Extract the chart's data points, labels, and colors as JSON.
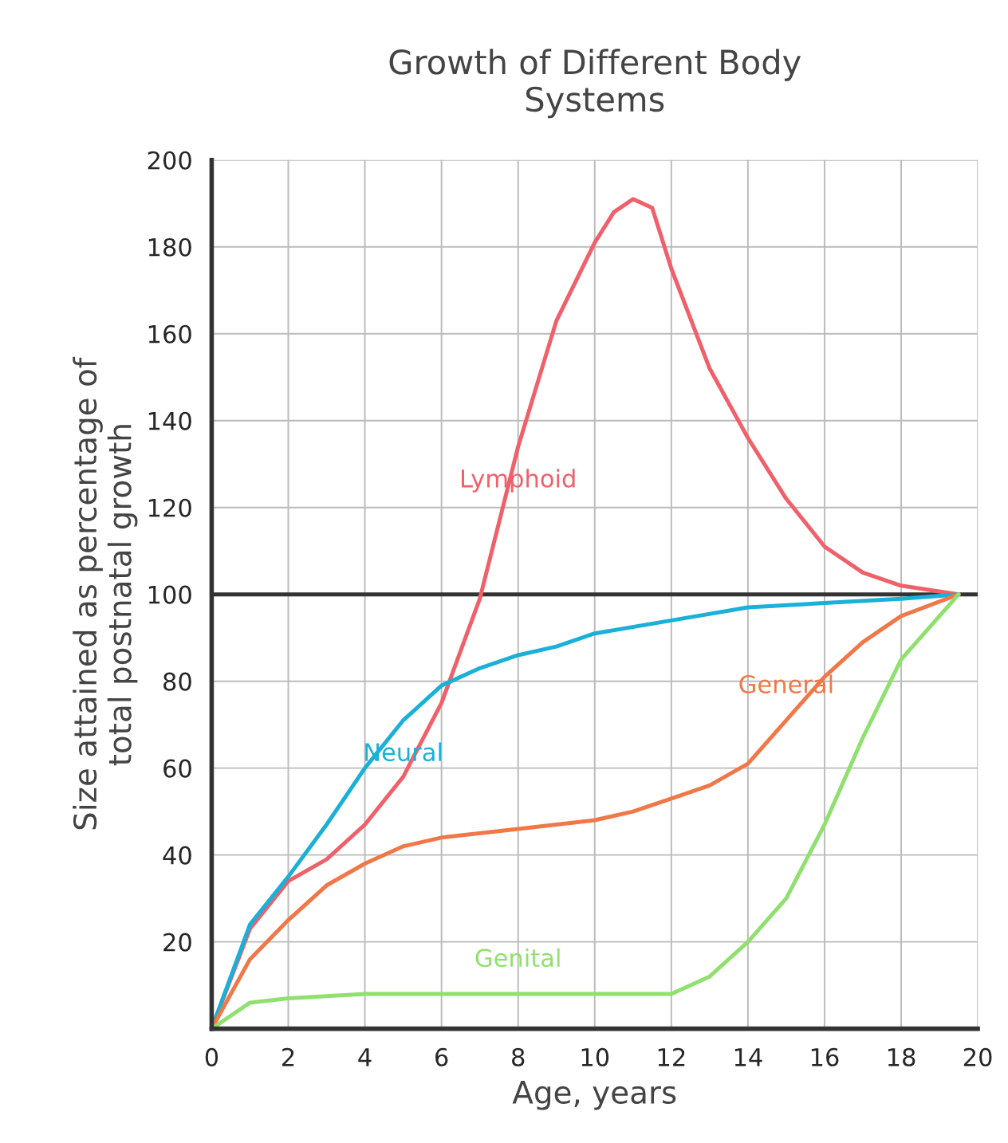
{
  "chart_data": {
    "type": "line",
    "title": "Growth of Different Body\nSystems",
    "xlabel": "Age, years",
    "ylabel": "Size attained as percentage of\ntotal postnatal growth",
    "xlim": [
      0,
      20
    ],
    "xticks": [
      0,
      2,
      4,
      6,
      8,
      10,
      12,
      14,
      16,
      18,
      20
    ],
    "ylim": [
      0,
      200
    ],
    "yticks": [
      20,
      40,
      60,
      80,
      100,
      120,
      140,
      160,
      180,
      200
    ],
    "grid": true,
    "legend": false,
    "marker": "none",
    "line_style": "solid",
    "ref_lines": [
      {
        "axis": "y",
        "value": 100,
        "label": null,
        "color": "#333333"
      }
    ],
    "series": [
      {
        "name": "Lymphoid",
        "color": "#f0606a",
        "x": [
          0,
          1,
          2,
          3,
          4,
          5,
          6,
          7,
          8,
          9,
          10,
          10.5,
          11,
          11.5,
          12,
          13,
          14,
          15,
          16,
          17,
          18,
          19.5
        ],
        "values": [
          0,
          23,
          34,
          39,
          47,
          58,
          75,
          99,
          134,
          163,
          181,
          188,
          191,
          189,
          175,
          152,
          136,
          122,
          111,
          105,
          102,
          100
        ]
      },
      {
        "name": "Neural",
        "color": "#1ab0d8",
        "x": [
          0,
          1,
          2,
          3,
          4,
          5,
          6,
          7,
          8,
          9,
          10,
          12,
          14,
          16,
          18,
          19.5
        ],
        "values": [
          0,
          24,
          35,
          47,
          60,
          71,
          79,
          83,
          86,
          88,
          91,
          94,
          97,
          98,
          99,
          100
        ]
      },
      {
        "name": "General",
        "color": "#f07848",
        "x": [
          0,
          1,
          2,
          3,
          4,
          5,
          6,
          8,
          10,
          11,
          12,
          13,
          14,
          15,
          16,
          17,
          18,
          19.5
        ],
        "values": [
          0,
          16,
          25,
          33,
          38,
          42,
          44,
          46,
          48,
          50,
          53,
          56,
          61,
          71,
          81,
          89,
          95,
          100
        ]
      },
      {
        "name": "Genital",
        "color": "#90e070",
        "x": [
          0,
          1,
          2,
          4,
          8,
          12,
          13,
          14,
          15,
          16,
          17,
          18,
          19.5
        ],
        "values": [
          0,
          6,
          7,
          8,
          8,
          8,
          12,
          20,
          30,
          47,
          67,
          85,
          100
        ]
      }
    ]
  }
}
